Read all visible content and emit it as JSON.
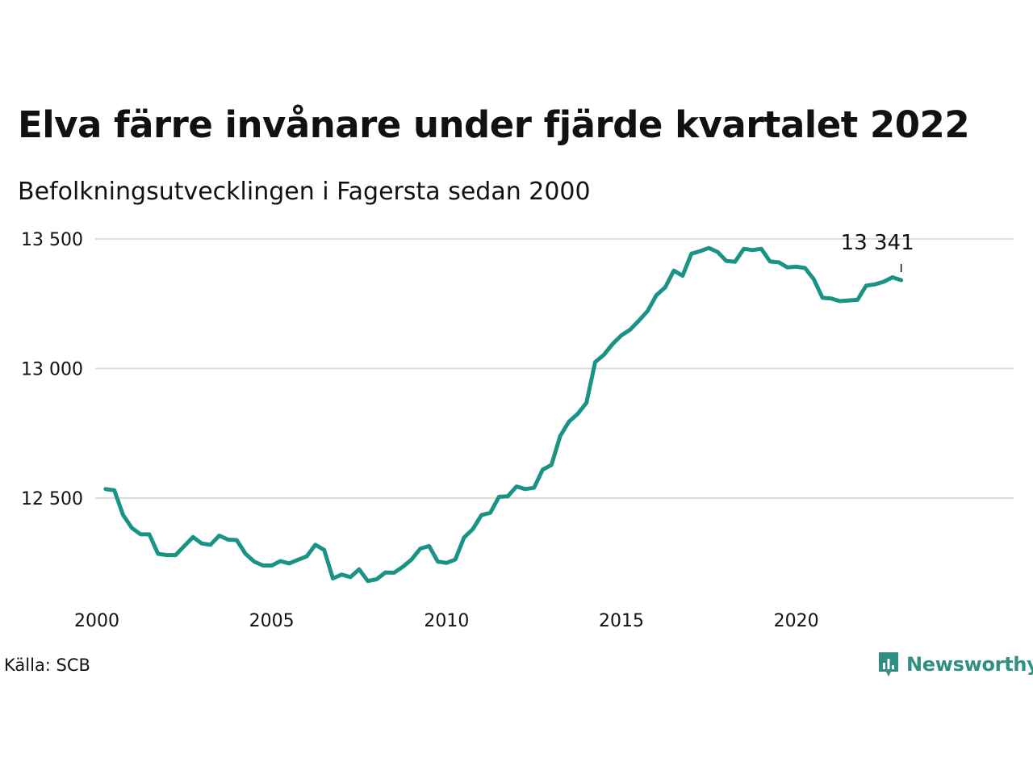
{
  "title": "Elva färre invånare under fjärde kvartalet 2022",
  "subtitle": "Befolkningsutvecklingen i Fagersta sedan 2000",
  "source": "Källa: SCB",
  "brand": "Newsworthy",
  "colors": {
    "line": "#1a9384",
    "grid": "#dddddd",
    "brand": "#2f8f83"
  },
  "chart_data": {
    "type": "line",
    "x_tick_labels": [
      "2000",
      "2005",
      "2010",
      "2015",
      "2020"
    ],
    "x_ticks": [
      2000,
      2005,
      2010,
      2015,
      2020
    ],
    "y_tick_labels": [
      "12 500",
      "13 000",
      "13 500"
    ],
    "y_ticks": [
      12500,
      13000,
      13500
    ],
    "xlim": [
      2000,
      2024
    ],
    "ylim": [
      12150,
      13500
    ],
    "grid": true,
    "annotation": {
      "label": "13 341",
      "x": 2022.75,
      "y": 13341
    },
    "series": [
      {
        "x": [
          2000.25,
          2000.5,
          2000.75,
          2001.0,
          2001.25,
          2001.5,
          2001.75,
          2002.0,
          2002.25,
          2002.5,
          2002.75,
          2003.0,
          2003.25,
          2003.5,
          2003.75,
          2004.0,
          2004.25,
          2004.5,
          2004.75,
          2005.0,
          2005.25,
          2005.5,
          2005.75,
          2006.0,
          2006.25,
          2006.5,
          2006.75,
          2007.0,
          2007.25,
          2007.5,
          2007.75,
          2008.0,
          2008.25,
          2008.5,
          2008.75,
          2009.0,
          2009.25,
          2009.5,
          2009.75,
          2010.0,
          2010.25,
          2010.5,
          2010.75,
          2011.0,
          2011.25,
          2011.5,
          2011.75,
          2012.0,
          2012.25,
          2012.5,
          2012.75,
          2013.0,
          2013.25,
          2013.5,
          2013.75,
          2014.0,
          2014.25,
          2014.5,
          2014.75,
          2015.0,
          2015.25,
          2015.5,
          2015.75,
          2016.0,
          2016.25,
          2016.5,
          2016.75,
          2017.0,
          2017.25,
          2017.5,
          2017.75,
          2018.0,
          2018.25,
          2018.5,
          2018.75,
          2019.0,
          2019.25,
          2019.5,
          2019.75,
          2020.0,
          2020.25,
          2020.5,
          2020.75,
          2021.0,
          2021.25,
          2021.5,
          2021.75,
          2022.0,
          2022.25,
          2022.5,
          2022.75,
          2023.0
        ],
        "values": [
          12535,
          12530,
          12435,
          12385,
          12360,
          12360,
          12285,
          12280,
          12280,
          12315,
          12350,
          12325,
          12320,
          12355,
          12340,
          12338,
          12285,
          12255,
          12240,
          12240,
          12257,
          12248,
          12262,
          12275,
          12320,
          12300,
          12190,
          12205,
          12195,
          12225,
          12180,
          12187,
          12213,
          12212,
          12235,
          12263,
          12305,
          12315,
          12255,
          12250,
          12263,
          12348,
          12380,
          12435,
          12443,
          12505,
          12507,
          12545,
          12535,
          12540,
          12610,
          12628,
          12740,
          12795,
          12825,
          12868,
          13025,
          13053,
          13095,
          13128,
          13150,
          13185,
          13222,
          13283,
          13313,
          13378,
          13358,
          13443,
          13453,
          13465,
          13450,
          13415,
          13412,
          13462,
          13457,
          13462,
          13413,
          13410,
          13390,
          13393,
          13388,
          13345,
          13273,
          13270,
          13260,
          13263,
          13265,
          13320,
          13325,
          13335,
          13352,
          13341
        ]
      }
    ]
  }
}
